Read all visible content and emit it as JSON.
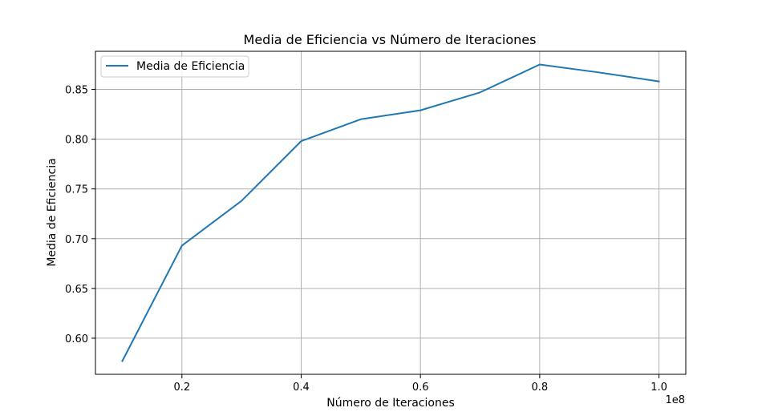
{
  "chart_data": {
    "type": "line",
    "title": "Media de Eficiencia vs Número de Iteraciones",
    "xlabel": "Número de Iteraciones",
    "ylabel": "Media de Eficiencia",
    "x_offset_label": "1e8",
    "x_ticks": [
      0.2,
      0.4,
      0.6,
      0.8,
      1.0
    ],
    "x_tick_labels": [
      "0.2",
      "0.4",
      "0.6",
      "0.8",
      "1.0"
    ],
    "y_ticks": [
      0.6,
      0.65,
      0.7,
      0.75,
      0.8,
      0.85
    ],
    "y_tick_labels": [
      "0.60",
      "0.65",
      "0.70",
      "0.75",
      "0.80",
      "0.85"
    ],
    "xlim": [
      0.055,
      1.045
    ],
    "ylim": [
      0.5637,
      0.8883
    ],
    "grid": true,
    "legend_position": "upper left",
    "series": [
      {
        "name": "Media de Eficiencia",
        "color": "#1f77b4",
        "x": [
          0.1,
          0.2,
          0.3,
          0.4,
          0.5,
          0.6,
          0.7,
          0.8,
          0.9,
          1.0
        ],
        "y": [
          0.577,
          0.693,
          0.738,
          0.798,
          0.82,
          0.829,
          0.847,
          0.875,
          0.867,
          0.858
        ]
      }
    ]
  }
}
